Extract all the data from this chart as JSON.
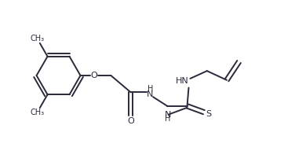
{
  "bg_color": "#ffffff",
  "line_color": "#2a2a3a",
  "text_color": "#2a2a3a",
  "line_width": 1.4,
  "font_size": 7.5,
  "figsize": [
    3.9,
    1.92
  ],
  "dpi": 100,
  "xlim": [
    0,
    10.0
  ],
  "ylim": [
    0,
    4.8
  ]
}
